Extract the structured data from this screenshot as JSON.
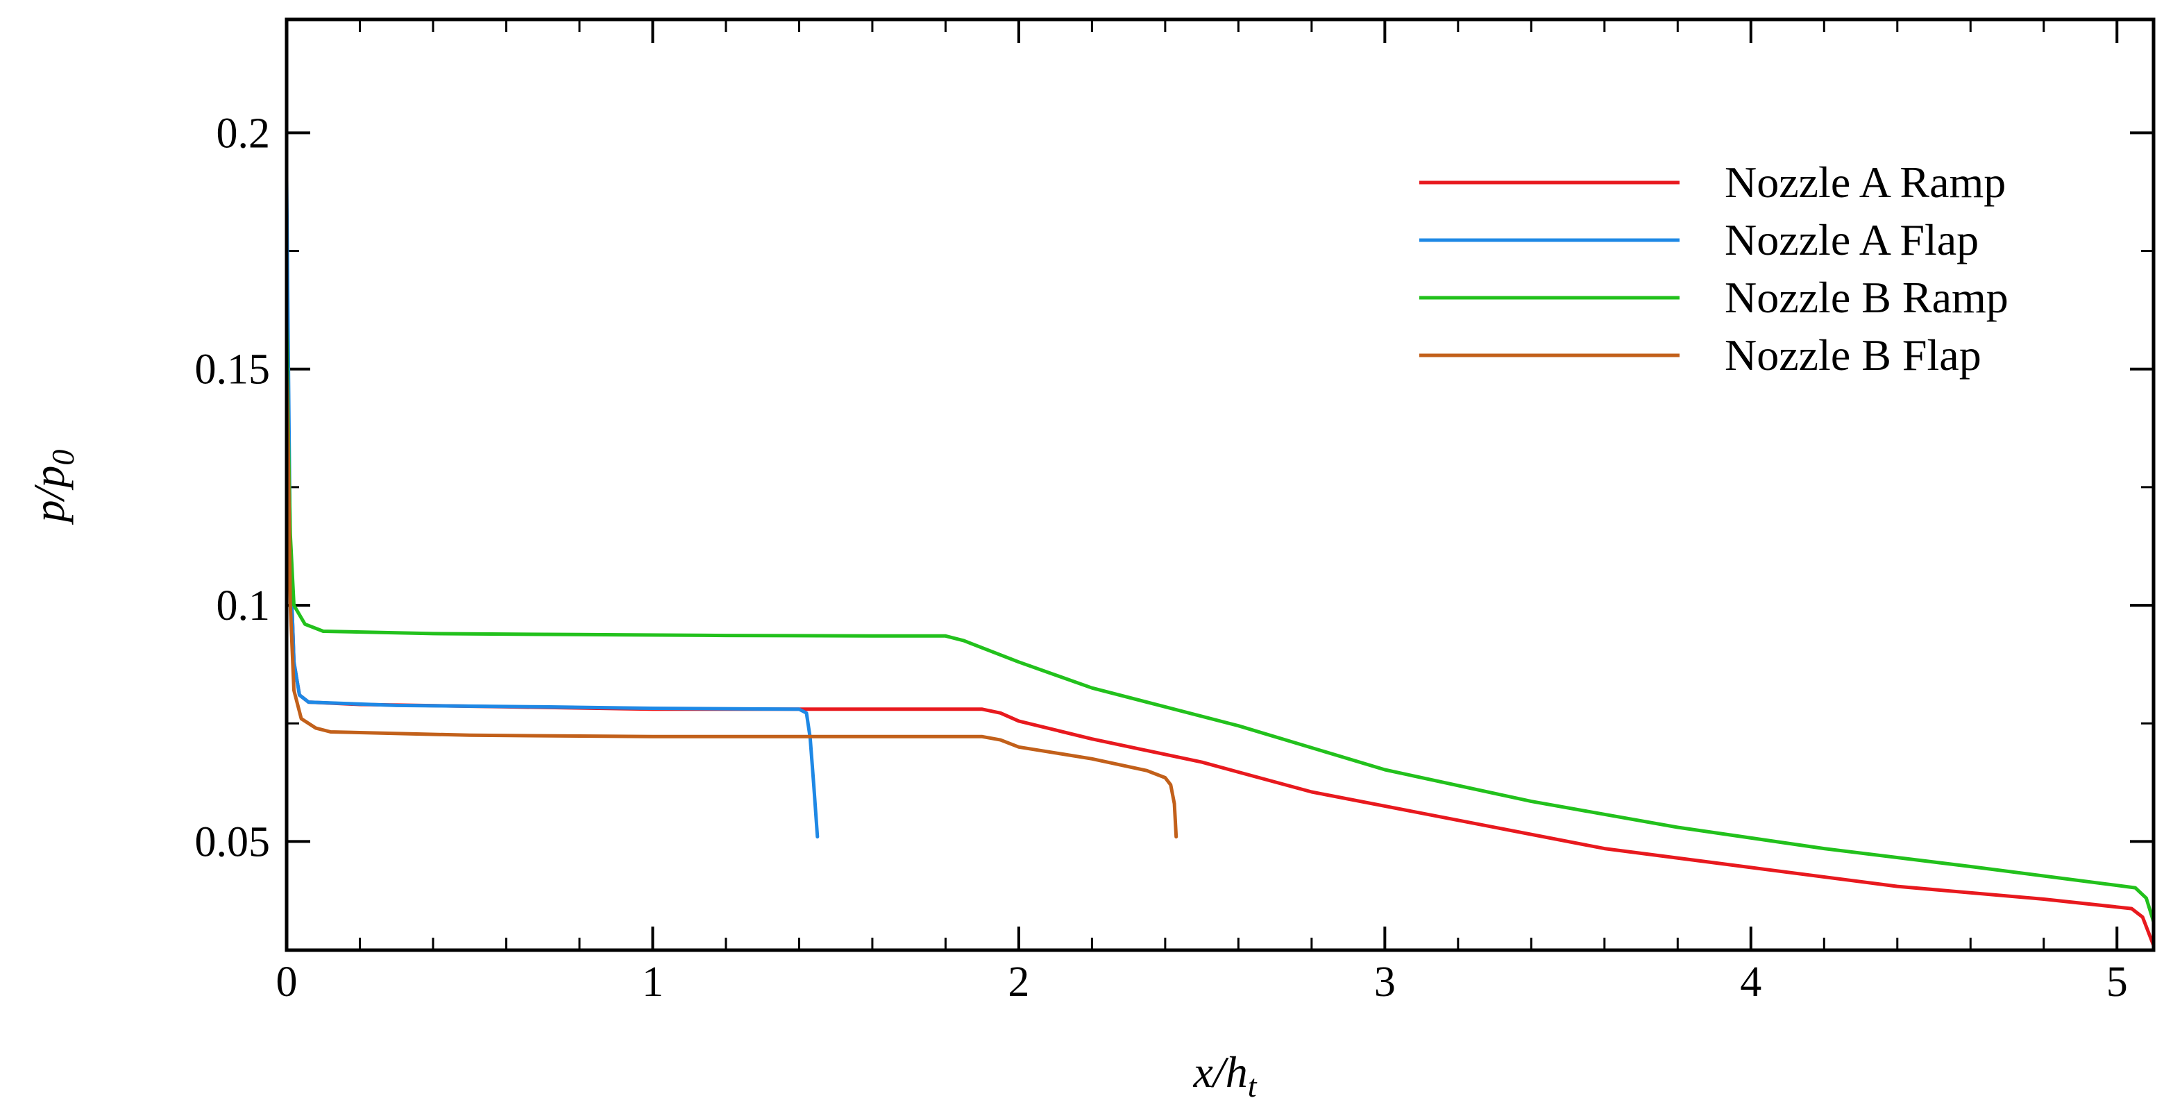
{
  "chart_data": {
    "type": "line",
    "xlabel": {
      "base": "x/h",
      "sub": "t"
    },
    "ylabel": {
      "base": "p/p",
      "sub": "0"
    },
    "xlim": [
      0,
      5.1
    ],
    "ylim": [
      0.027,
      0.224
    ],
    "x_ticks": [
      0,
      1,
      2,
      3,
      4,
      5
    ],
    "x_tick_labels": [
      "0",
      "1",
      "2",
      "3",
      "4",
      "5"
    ],
    "y_ticks": [
      0.05,
      0.1,
      0.15,
      0.2
    ],
    "y_tick_labels": [
      "0.05",
      "0.1",
      "0.15",
      "0.2"
    ],
    "x_minor_step": 0.2,
    "y_minor_step": 0.025,
    "grid": false,
    "legend_position": "top-right",
    "series": [
      {
        "name": "Nozzle A Ramp",
        "color": "#e8191e",
        "points": [
          [
            0.0,
            0.18
          ],
          [
            0.005,
            0.14
          ],
          [
            0.01,
            0.11
          ],
          [
            0.02,
            0.088
          ],
          [
            0.035,
            0.081
          ],
          [
            0.06,
            0.0795
          ],
          [
            0.2,
            0.079
          ],
          [
            0.6,
            0.0785
          ],
          [
            1.0,
            0.078
          ],
          [
            1.4,
            0.078
          ],
          [
            1.9,
            0.078
          ],
          [
            1.95,
            0.0772
          ],
          [
            2.0,
            0.0755
          ],
          [
            2.2,
            0.0717
          ],
          [
            2.5,
            0.0668
          ],
          [
            2.8,
            0.0605
          ],
          [
            3.2,
            0.0545
          ],
          [
            3.6,
            0.0485
          ],
          [
            4.0,
            0.0445
          ],
          [
            4.4,
            0.0405
          ],
          [
            4.8,
            0.0378
          ],
          [
            5.04,
            0.0358
          ],
          [
            5.07,
            0.034
          ],
          [
            5.09,
            0.03
          ],
          [
            5.1,
            0.028
          ]
        ]
      },
      {
        "name": "Nozzle A Flap",
        "color": "#1e88e5",
        "points": [
          [
            0.0,
            0.19
          ],
          [
            0.005,
            0.15
          ],
          [
            0.01,
            0.11
          ],
          [
            0.02,
            0.088
          ],
          [
            0.035,
            0.081
          ],
          [
            0.06,
            0.0795
          ],
          [
            0.3,
            0.0788
          ],
          [
            0.7,
            0.0785
          ],
          [
            1.0,
            0.0782
          ],
          [
            1.4,
            0.078
          ],
          [
            1.42,
            0.0772
          ],
          [
            1.43,
            0.072
          ],
          [
            1.44,
            0.062
          ],
          [
            1.45,
            0.051
          ]
        ]
      },
      {
        "name": "Nozzle B Ramp",
        "color": "#22c11c",
        "points": [
          [
            0.0,
            0.16
          ],
          [
            0.005,
            0.135
          ],
          [
            0.01,
            0.115
          ],
          [
            0.02,
            0.1
          ],
          [
            0.05,
            0.096
          ],
          [
            0.1,
            0.0945
          ],
          [
            0.4,
            0.094
          ],
          [
            0.8,
            0.0938
          ],
          [
            1.2,
            0.0936
          ],
          [
            1.6,
            0.0935
          ],
          [
            1.8,
            0.0935
          ],
          [
            1.85,
            0.0925
          ],
          [
            2.0,
            0.088
          ],
          [
            2.2,
            0.0825
          ],
          [
            2.6,
            0.0745
          ],
          [
            3.0,
            0.0652
          ],
          [
            3.4,
            0.0585
          ],
          [
            3.8,
            0.053
          ],
          [
            4.2,
            0.0485
          ],
          [
            4.6,
            0.0447
          ],
          [
            5.05,
            0.0402
          ],
          [
            5.08,
            0.038
          ],
          [
            5.1,
            0.033
          ]
        ]
      },
      {
        "name": "Nozzle B Flap",
        "color": "#c2601a",
        "points": [
          [
            0.0,
            0.15
          ],
          [
            0.005,
            0.13
          ],
          [
            0.01,
            0.1
          ],
          [
            0.02,
            0.082
          ],
          [
            0.04,
            0.076
          ],
          [
            0.08,
            0.074
          ],
          [
            0.12,
            0.0732
          ],
          [
            0.5,
            0.0725
          ],
          [
            1.0,
            0.0722
          ],
          [
            1.5,
            0.0722
          ],
          [
            1.9,
            0.0722
          ],
          [
            1.95,
            0.0715
          ],
          [
            2.0,
            0.07
          ],
          [
            2.2,
            0.0675
          ],
          [
            2.35,
            0.065
          ],
          [
            2.4,
            0.0635
          ],
          [
            2.415,
            0.062
          ],
          [
            2.425,
            0.058
          ],
          [
            2.43,
            0.051
          ]
        ]
      }
    ]
  }
}
